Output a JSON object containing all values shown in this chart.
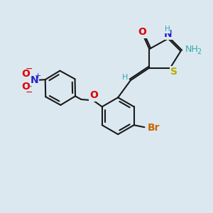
{
  "bg_color": "#dce8f0",
  "bond_color": "#1a1a1a",
  "bond_width": 1.5,
  "dbo": 0.07,
  "colors": {
    "O": "#dd0000",
    "N": "#2222cc",
    "S": "#bbaa00",
    "Br": "#cc6600",
    "H": "#33aaaa",
    "C": "#1a1a1a",
    "NH2": "#33aaaa"
  },
  "figsize": [
    3.0,
    3.0
  ],
  "dpi": 100
}
